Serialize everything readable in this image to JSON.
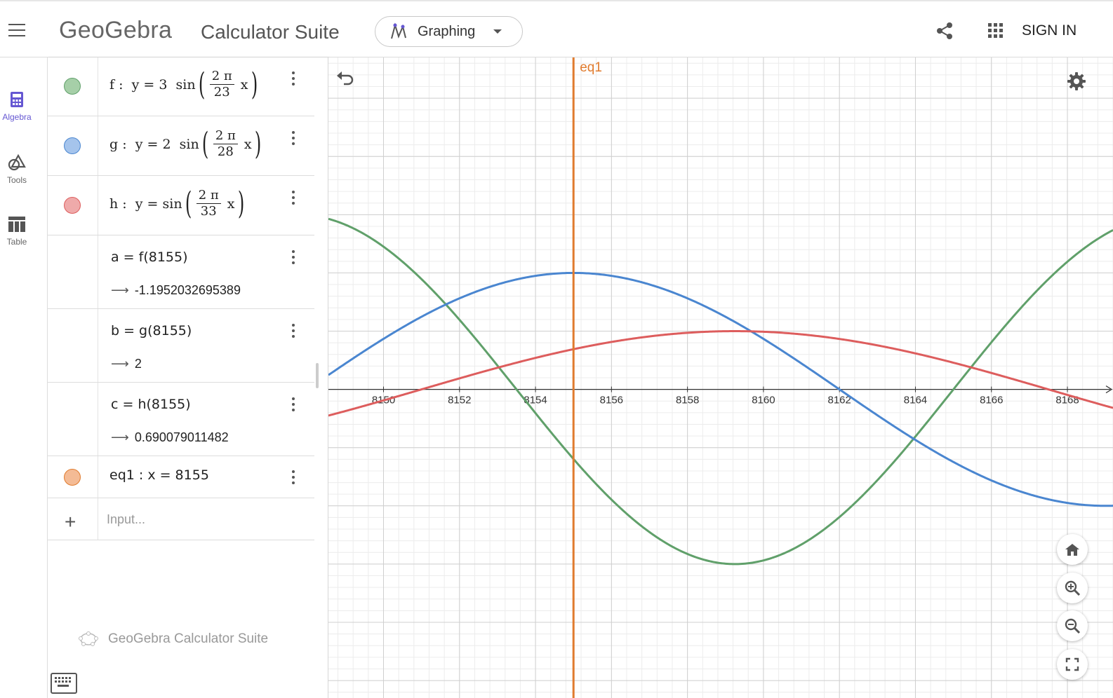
{
  "header": {
    "logo": "GeoGebra",
    "title": "Calculator Suite",
    "app_switch": "Graphing",
    "sign_in": "SIGN IN"
  },
  "nav": {
    "items": [
      {
        "label": "Algebra",
        "icon": "calculator-icon",
        "active": true
      },
      {
        "label": "Tools",
        "icon": "shapes-icon",
        "active": false
      },
      {
        "label": "Table",
        "icon": "table-icon",
        "active": false
      }
    ]
  },
  "algebra": {
    "f": {
      "name": "f",
      "coef": "3",
      "num": "2 π",
      "den": "23",
      "color": "#60a06a"
    },
    "g": {
      "name": "g",
      "coef": "2",
      "num": "2 π",
      "den": "28",
      "color": "#4a86d0"
    },
    "h": {
      "name": "h",
      "coef": "",
      "num": "2 π",
      "den": "33",
      "color": "#dd5d5d"
    },
    "a": {
      "def": "a  =  f(8155)",
      "value": "-1.1952032695389"
    },
    "b": {
      "def": "b  =  g(8155)",
      "value": "2"
    },
    "c": {
      "def": "c  =  h(8155)",
      "value": "0.690079011482"
    },
    "eq1": {
      "def": "eq1 : x  =  8155",
      "color": "#e07b2e"
    },
    "input_placeholder": "Input...",
    "watermark": "GeoGebra Calculator Suite"
  },
  "graph": {
    "eq1_label": "eq1",
    "x_ticks": [
      "8150",
      "8152",
      "8154",
      "8156",
      "8158",
      "8160",
      "8162",
      "8164",
      "8166",
      "8168"
    ]
  },
  "chart_data": {
    "type": "line",
    "xlim": [
      8148.55,
      8169.2
    ],
    "ylim": [
      -5.3,
      5.7
    ],
    "grid": true,
    "series": [
      {
        "name": "f",
        "expr": "3 sin(2π/23 x)",
        "color": "#60a06a"
      },
      {
        "name": "g",
        "expr": "2 sin(2π/28 x)",
        "color": "#4a86d0"
      },
      {
        "name": "h",
        "expr": "sin(2π/33 x)",
        "color": "#dd5d5d"
      },
      {
        "name": "eq1",
        "expr": "x = 8155",
        "color": "#e07b2e"
      }
    ],
    "x_ticks": [
      8150,
      8152,
      8154,
      8156,
      8158,
      8160,
      8162,
      8164,
      8166,
      8168
    ]
  }
}
